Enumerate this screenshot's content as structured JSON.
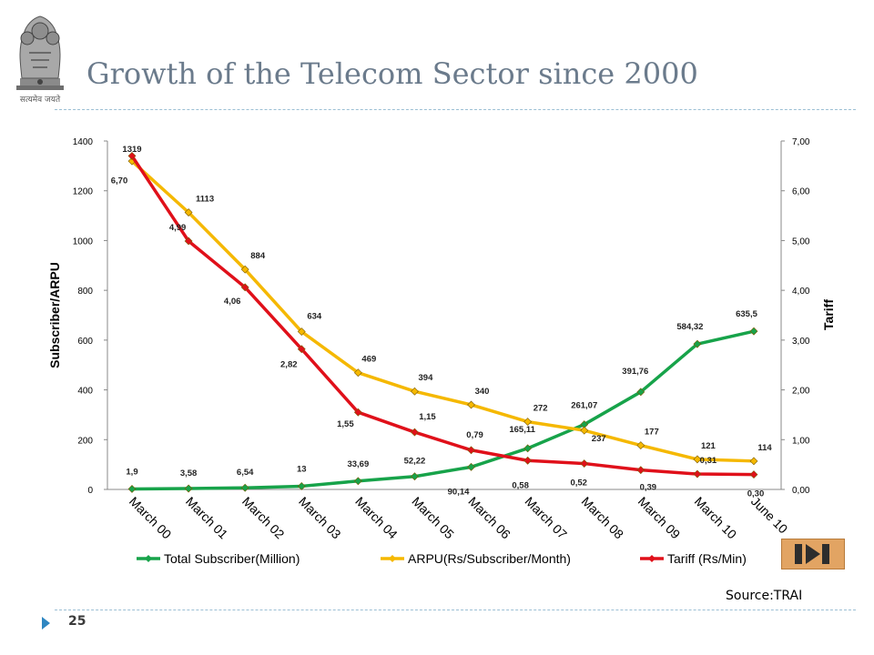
{
  "header": {
    "title": "Growth of the Telecom Sector since 2000",
    "emblem_motto": "सत्यमेव जयते"
  },
  "footer": {
    "page_number": "25",
    "source": "Source:TRAI"
  },
  "nav": {
    "icon": "last-slide-icon"
  },
  "colors": {
    "subscribers": "#17a34a",
    "arpu": "#f5b800",
    "tariff": "#e0101a",
    "title": "#6b7b8c"
  },
  "chart_data": {
    "type": "line",
    "categories": [
      "March 00",
      "March 01",
      "March 02",
      "March 03",
      "March 04",
      "March 05",
      "March 06",
      "March 07",
      "March 08",
      "March 09",
      "March 10",
      "June 10"
    ],
    "left_axis": {
      "label": "Subscriber/ARPU",
      "range": [
        0,
        1400
      ],
      "ticks": [
        "0",
        "200",
        "400",
        "600",
        "800",
        "1000",
        "1200",
        "1400"
      ]
    },
    "right_axis": {
      "label": "Tariff",
      "range": [
        0,
        7
      ],
      "ticks": [
        "0,00",
        "1,00",
        "2,00",
        "3,00",
        "4,00",
        "5,00",
        "6,00",
        "7,00"
      ]
    },
    "legend_position": "bottom",
    "grid": false,
    "series": [
      {
        "name": "Total Subscriber(Million)",
        "axis": "left",
        "color": "#17a34a",
        "marker": "diamond",
        "values": [
          1.9,
          3.58,
          6.54,
          13,
          33.69,
          52.22,
          90.14,
          165.11,
          261.07,
          391.76,
          584.32,
          635.5
        ],
        "labels": [
          "1,9",
          "3,58",
          "6,54",
          "13",
          "33,69",
          "52,22",
          "90,14",
          "165,11",
          "261,07",
          "391,76",
          "584,32",
          "635,5"
        ]
      },
      {
        "name": "ARPU(Rs/Subscriber/Month)",
        "axis": "left",
        "color": "#f5b800",
        "marker": "diamond",
        "values": [
          1319,
          1113,
          884,
          634,
          469,
          394,
          340,
          272,
          237,
          177,
          121,
          114
        ],
        "labels": [
          "1319",
          "1113",
          "884",
          "634",
          "469",
          "394",
          "340",
          "272",
          "237",
          "177",
          "121",
          "114"
        ]
      },
      {
        "name": "Tariff (Rs/Min)",
        "axis": "right",
        "color": "#e0101a",
        "marker": "diamond",
        "values": [
          6.7,
          4.99,
          4.06,
          2.82,
          1.55,
          1.15,
          0.79,
          0.58,
          0.52,
          0.39,
          0.31,
          0.3
        ],
        "labels": [
          "6,70",
          "4,99",
          "4,06",
          "2,82",
          "1,55",
          "1,15",
          "0,79",
          "0,58",
          "0,52",
          "0,39",
          "0,31",
          "0,30"
        ]
      }
    ]
  }
}
